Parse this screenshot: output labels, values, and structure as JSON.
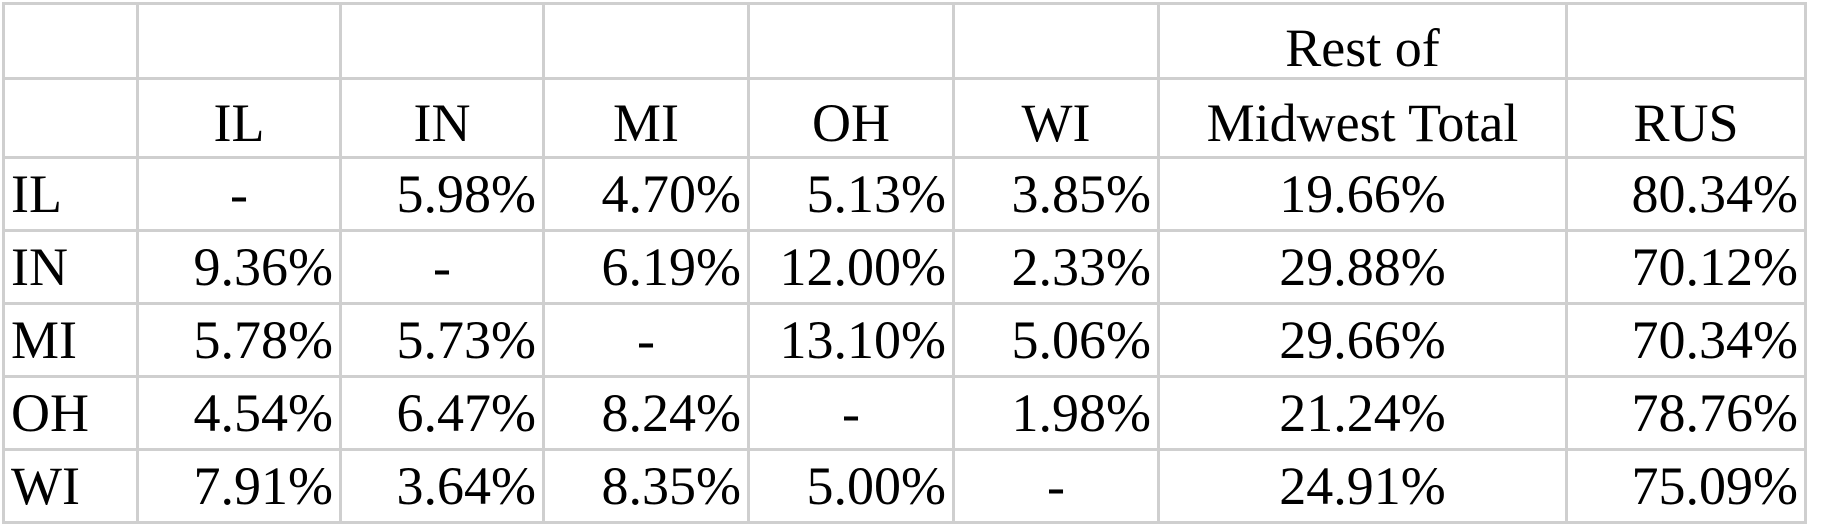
{
  "table": {
    "header_top": [
      "",
      "",
      "",
      "",
      "",
      "",
      "Rest of",
      ""
    ],
    "header": [
      "",
      "IL",
      "IN",
      "MI",
      "OH",
      "WI",
      "Midwest Total",
      "RUS"
    ],
    "rows": [
      {
        "label": "IL",
        "values": [
          "-",
          "5.98%",
          "4.70%",
          "5.13%",
          "3.85%",
          "19.66%",
          "80.34%"
        ]
      },
      {
        "label": "IN",
        "values": [
          "9.36%",
          "-",
          "6.19%",
          "12.00%",
          "2.33%",
          "29.88%",
          "70.12%"
        ]
      },
      {
        "label": "MI",
        "values": [
          "5.78%",
          "5.73%",
          "-",
          "13.10%",
          "5.06%",
          "29.66%",
          "70.34%"
        ]
      },
      {
        "label": "OH",
        "values": [
          "4.54%",
          "6.47%",
          "8.24%",
          "-",
          "1.98%",
          "21.24%",
          "78.76%"
        ]
      },
      {
        "label": "WI",
        "values": [
          "7.91%",
          "3.64%",
          "8.35%",
          "5.00%",
          "-",
          "24.91%",
          "75.09%"
        ]
      }
    ]
  },
  "colors": {
    "grid_line": "#cfcfcf",
    "text": "#000000",
    "background": "#ffffff"
  }
}
